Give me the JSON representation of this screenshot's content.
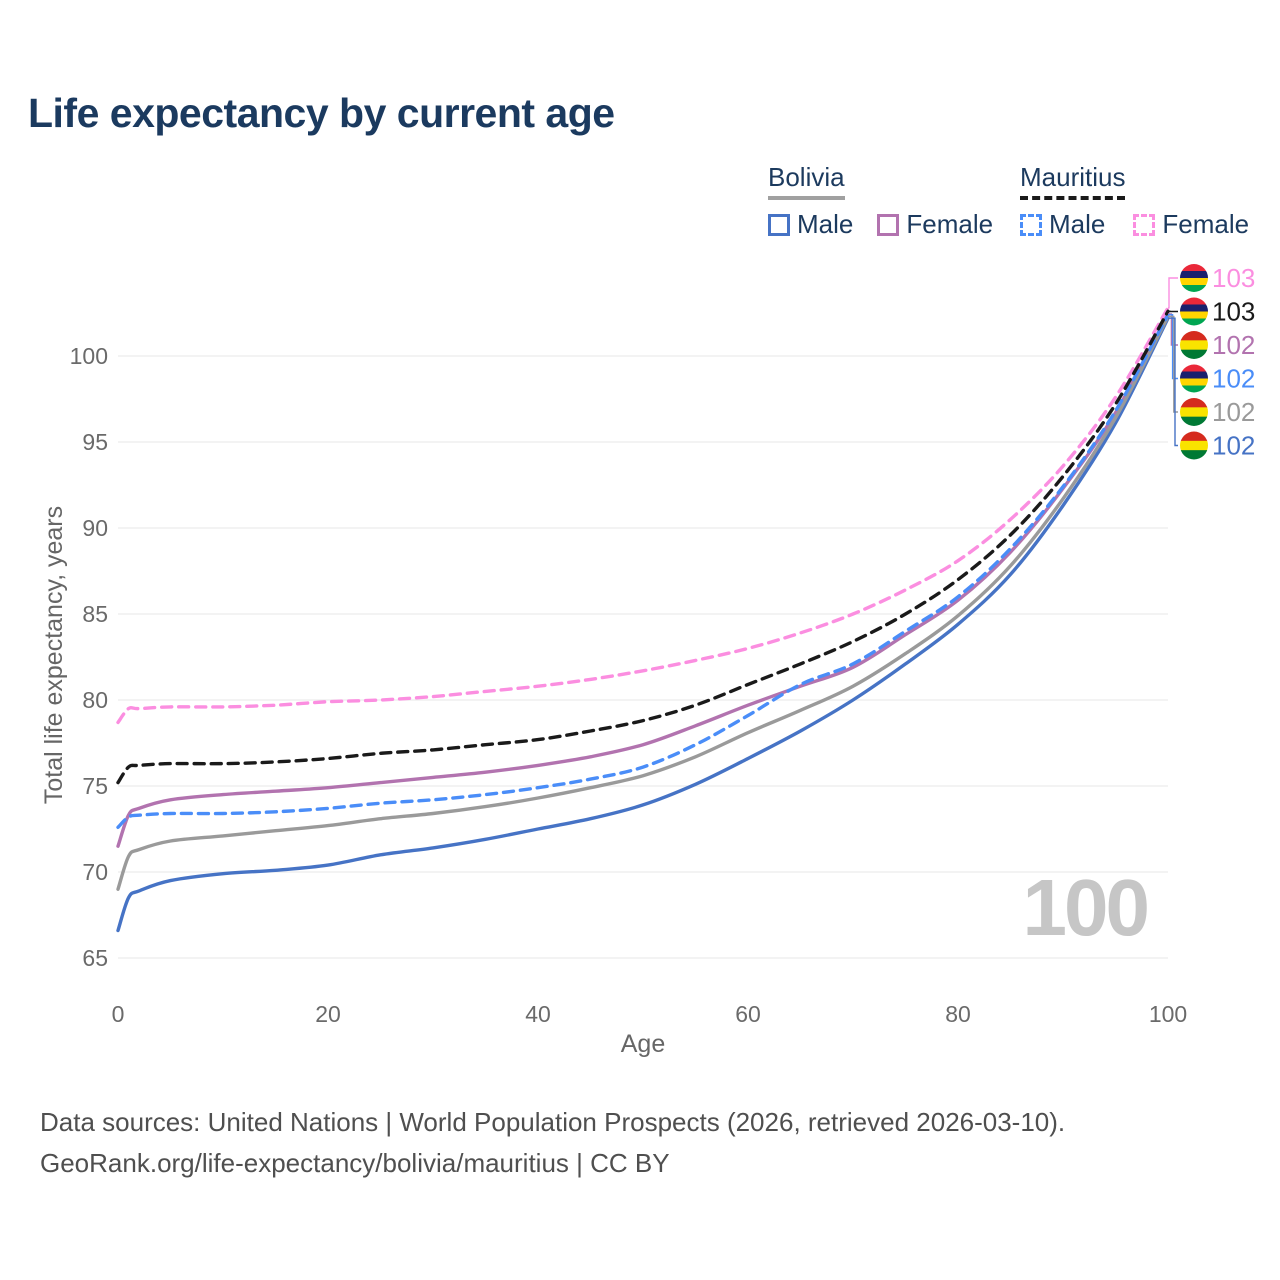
{
  "title": "Life expectancy by current age",
  "legend": {
    "groups": [
      {
        "country": "Bolivia",
        "underline_style": "solid",
        "underline_color": "#a0a0a0",
        "items": [
          {
            "label": "Male",
            "color": "#4673c5",
            "dashed": false
          },
          {
            "label": "Female",
            "color": "#b273af",
            "dashed": false
          }
        ]
      },
      {
        "country": "Mauritius",
        "underline_style": "dashed",
        "underline_color": "#1a1a1a",
        "items": [
          {
            "label": "Male",
            "color": "#4a8df8",
            "dashed": true
          },
          {
            "label": "Female",
            "color": "#fb8ee0",
            "dashed": true
          }
        ]
      }
    ]
  },
  "chart_data": {
    "type": "line",
    "title": "Life expectancy by current age",
    "xlabel": "Age",
    "ylabel": "Total life expectancy, years",
    "xlim": [
      0,
      100
    ],
    "x_ticks": [
      0,
      20,
      40,
      60,
      80,
      100
    ],
    "y_ticks": [
      65,
      70,
      75,
      80,
      85,
      90,
      95,
      100
    ],
    "grid": "horizontal",
    "grid_color": "#ececec",
    "watermark": "100",
    "x": [
      0,
      1,
      2,
      5,
      10,
      15,
      20,
      25,
      30,
      35,
      40,
      45,
      50,
      55,
      60,
      65,
      70,
      75,
      80,
      85,
      90,
      95,
      100
    ],
    "series": [
      {
        "name": "Bolivia Male",
        "country": "Bolivia",
        "sex": "Male",
        "color": "#4673c5",
        "dash": false,
        "values": [
          66.6,
          68.5,
          68.9,
          69.5,
          69.9,
          70.1,
          70.4,
          71.0,
          71.4,
          71.9,
          72.5,
          73.1,
          73.9,
          75.1,
          76.6,
          78.2,
          80.0,
          82.1,
          84.4,
          87.3,
          91.3,
          96.1,
          102.2
        ]
      },
      {
        "name": "Bolivia Female",
        "country": "Bolivia",
        "sex": "Female",
        "color": "#b273af",
        "dash": false,
        "values": [
          71.5,
          73.3,
          73.7,
          74.2,
          74.5,
          74.7,
          74.9,
          75.2,
          75.5,
          75.8,
          76.2,
          76.7,
          77.4,
          78.5,
          79.7,
          80.8,
          81.9,
          83.8,
          85.8,
          88.6,
          92.3,
          96.7,
          102.45
        ]
      },
      {
        "name": "Bolivia",
        "country": "Bolivia",
        "sex": "Both",
        "color": "#9a9a9a",
        "dash": false,
        "values": [
          69.0,
          70.9,
          71.3,
          71.8,
          72.1,
          72.4,
          72.7,
          73.1,
          73.4,
          73.8,
          74.3,
          74.9,
          75.6,
          76.7,
          78.1,
          79.4,
          80.8,
          82.7,
          84.9,
          87.8,
          91.7,
          96.4,
          102.3
        ]
      },
      {
        "name": "Mauritius Male",
        "country": "Mauritius",
        "sex": "Male",
        "color": "#4a8df8",
        "dash": true,
        "values": [
          72.6,
          73.2,
          73.3,
          73.4,
          73.4,
          73.5,
          73.7,
          74.0,
          74.2,
          74.5,
          74.9,
          75.4,
          76.1,
          77.4,
          79.1,
          80.9,
          82.1,
          84.0,
          86.0,
          88.8,
          92.4,
          96.8,
          102.4
        ]
      },
      {
        "name": "Mauritius Female",
        "country": "Mauritius",
        "sex": "Female",
        "color": "#fb8ee0",
        "dash": true,
        "values": [
          78.7,
          79.5,
          79.5,
          79.6,
          79.6,
          79.7,
          79.9,
          80.0,
          80.2,
          80.5,
          80.8,
          81.2,
          81.7,
          82.3,
          83.0,
          83.9,
          85.0,
          86.4,
          88.1,
          90.5,
          93.6,
          97.6,
          102.8
        ]
      },
      {
        "name": "Mauritius",
        "country": "Mauritius",
        "sex": "Both",
        "color": "#1a1a1a",
        "dash": true,
        "values": [
          75.2,
          76.1,
          76.2,
          76.3,
          76.3,
          76.4,
          76.6,
          76.9,
          77.1,
          77.4,
          77.7,
          78.2,
          78.8,
          79.7,
          80.9,
          82.1,
          83.4,
          85.0,
          87.0,
          89.6,
          93.0,
          97.2,
          102.6
        ]
      }
    ],
    "end_labels": [
      {
        "series": "Mauritius Female",
        "value": "103",
        "flag": "mauritius"
      },
      {
        "series": "Mauritius",
        "value": "103",
        "flag": "mauritius"
      },
      {
        "series": "Bolivia Female",
        "value": "102",
        "flag": "bolivia"
      },
      {
        "series": "Mauritius Male",
        "value": "102",
        "flag": "mauritius"
      },
      {
        "series": "Bolivia",
        "value": "102",
        "flag": "bolivia"
      },
      {
        "series": "Bolivia Male",
        "value": "102",
        "flag": "bolivia"
      }
    ]
  },
  "flags": {
    "mauritius": [
      "#EA2839",
      "#1A206D",
      "#FFD500",
      "#00A551"
    ],
    "bolivia": [
      "#D52B1E",
      "#F9E300",
      "#007934"
    ]
  },
  "footer": {
    "line1": "Data sources: United Nations | World Population Prospects (2026, retrieved 2026-03-10).",
    "line2": "GeoRank.org/life-expectancy/bolivia/mauritius | CC BY"
  }
}
